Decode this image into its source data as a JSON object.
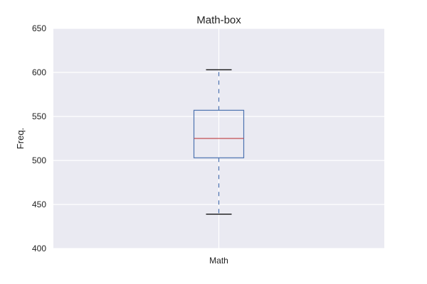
{
  "chart_data": {
    "type": "box",
    "title": "Math-box",
    "xlabel": "",
    "ylabel": "Freq.",
    "ylim": [
      400,
      650
    ],
    "y_ticks": [
      400,
      450,
      500,
      550,
      600,
      650
    ],
    "y_tick_labels": [
      "400",
      "450",
      "500",
      "550",
      "600",
      "650"
    ],
    "categories": [
      "Math"
    ],
    "boxes": [
      {
        "name": "Math",
        "whisker_low": 439,
        "q1": 503,
        "median": 525,
        "q3": 557,
        "whisker_high": 603
      }
    ],
    "grid": true,
    "colors": {
      "background": "#EAEAF2",
      "grid": "#FFFFFF",
      "box": "#4C72B0",
      "median": "#C44E52",
      "whisker": "#4C72B0",
      "cap": "#000000"
    }
  }
}
